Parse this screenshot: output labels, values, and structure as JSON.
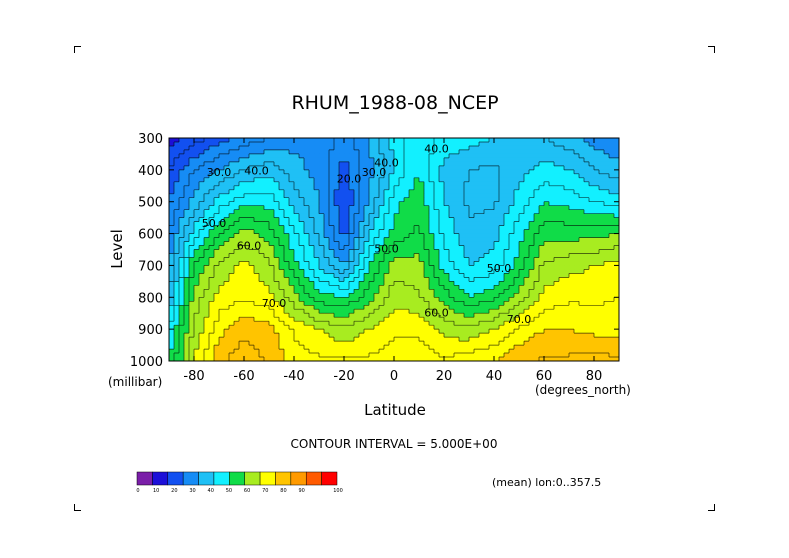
{
  "chart_data": {
    "type": "heatmap",
    "subtype": "filled-contour",
    "title": "RHUM_1988-08_NCEP",
    "xlabel": "Latitude",
    "ylabel": "Level",
    "x_unit": "(degrees_north)",
    "y_unit": "(millibar)",
    "xlim": [
      -90,
      90
    ],
    "ylim": [
      1000,
      300
    ],
    "x_ticks": [
      -80,
      -60,
      -40,
      -20,
      0,
      20,
      40,
      60,
      80
    ],
    "y_ticks": [
      300,
      400,
      500,
      600,
      700,
      800,
      900,
      1000
    ],
    "contour_interval_text": "CONTOUR INTERVAL = 5.000E+00",
    "footnote": "(mean) lon:0..357.5",
    "colorbar": {
      "levels": [
        0,
        10,
        20,
        30,
        40,
        50,
        60,
        70,
        80,
        90,
        100
      ],
      "colors": [
        "#7a1ea8",
        "#1c0fd8",
        "#1250f0",
        "#168cf5",
        "#1fc0f5",
        "#12f0ff",
        "#10dc48",
        "#a8ec20",
        "#ffff00",
        "#ffc400",
        "#ff9a00",
        "#ff5a00",
        "#ff0000"
      ]
    },
    "x": [
      -90,
      -80,
      -70,
      -60,
      -50,
      -40,
      -30,
      -20,
      -10,
      0,
      10,
      20,
      30,
      40,
      50,
      60,
      70,
      80,
      90
    ],
    "y": [
      300,
      400,
      500,
      600,
      700,
      800,
      900,
      1000
    ],
    "z": [
      [
        8,
        12,
        18,
        22,
        25,
        28,
        30,
        22,
        30,
        42,
        48,
        44,
        42,
        40,
        38,
        35,
        32,
        28,
        25
      ],
      [
        15,
        25,
        30,
        35,
        38,
        32,
        28,
        18,
        28,
        40,
        50,
        38,
        35,
        34,
        38,
        42,
        40,
        35,
        32
      ],
      [
        20,
        32,
        42,
        48,
        48,
        38,
        30,
        15,
        30,
        48,
        54,
        40,
        34,
        34,
        42,
        50,
        48,
        45,
        42
      ],
      [
        25,
        42,
        55,
        62,
        58,
        46,
        34,
        18,
        40,
        52,
        56,
        44,
        36,
        38,
        48,
        58,
        58,
        58,
        60
      ],
      [
        30,
        55,
        66,
        72,
        66,
        52,
        40,
        30,
        50,
        62,
        62,
        48,
        40,
        42,
        52,
        66,
        68,
        70,
        72
      ],
      [
        35,
        62,
        72,
        74,
        72,
        62,
        52,
        50,
        58,
        68,
        66,
        58,
        50,
        54,
        62,
        72,
        74,
        74,
        75
      ],
      [
        45,
        66,
        78,
        84,
        82,
        74,
        70,
        66,
        70,
        74,
        74,
        68,
        66,
        70,
        76,
        80,
        80,
        78,
        78
      ],
      [
        50,
        70,
        84,
        88,
        84,
        78,
        76,
        76,
        76,
        78,
        78,
        76,
        78,
        80,
        84,
        86,
        86,
        88,
        86
      ]
    ],
    "contour_labels": [
      {
        "text": "30.0",
        "x": -70,
        "y": 420
      },
      {
        "text": "40.0",
        "x": -55,
        "y": 415
      },
      {
        "text": "50.0",
        "x": -72,
        "y": 580
      },
      {
        "text": "60.0",
        "x": -58,
        "y": 650
      },
      {
        "text": "70.0",
        "x": -48,
        "y": 830
      },
      {
        "text": "20.0",
        "x": -18,
        "y": 440
      },
      {
        "text": "30.0",
        "x": -8,
        "y": 420
      },
      {
        "text": "40.0",
        "x": -3,
        "y": 390
      },
      {
        "text": "50.0",
        "x": -3,
        "y": 660
      },
      {
        "text": "40.0",
        "x": 17,
        "y": 345
      },
      {
        "text": "60.0",
        "x": 17,
        "y": 860
      },
      {
        "text": "50.0",
        "x": 42,
        "y": 720
      },
      {
        "text": "70.0",
        "x": 50,
        "y": 880
      }
    ]
  }
}
